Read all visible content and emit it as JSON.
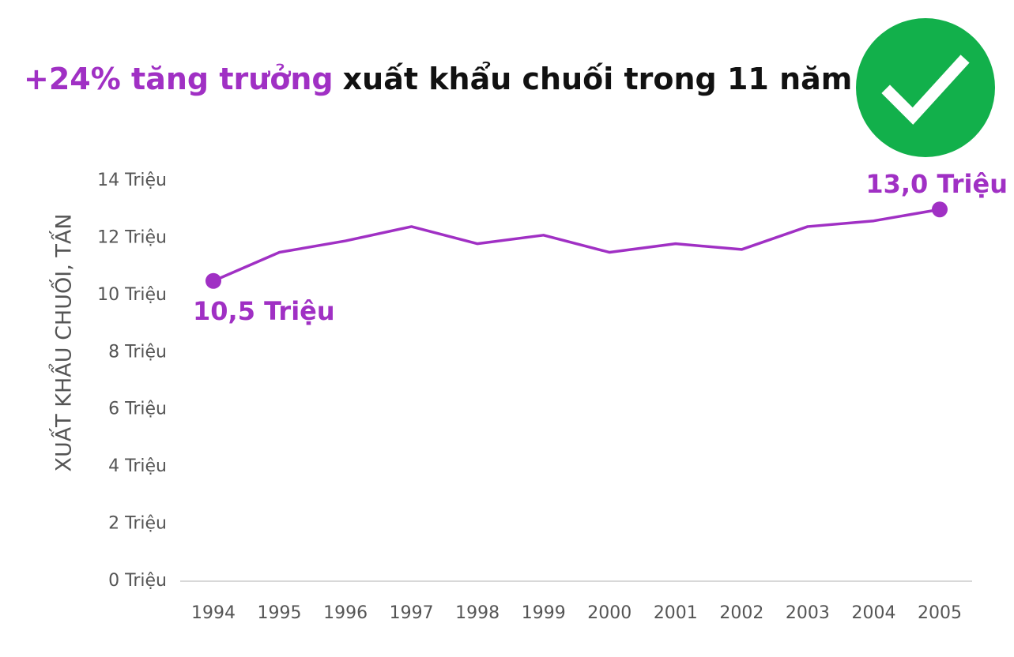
{
  "chart_data": {
    "type": "line",
    "title_highlight": "+24% tăng trưởng",
    "title": "xuất khẩu chuối trong 11 năm",
    "y_label": "XUẤT KHẨU CHUỐI, TẤN",
    "categories": [
      "1994",
      "1995",
      "1996",
      "1997",
      "1998",
      "1999",
      "2000",
      "2001",
      "2002",
      "2003",
      "2004",
      "2005"
    ],
    "values": [
      10.5,
      11.5,
      11.9,
      12.4,
      11.8,
      12.1,
      11.5,
      11.8,
      11.6,
      12.4,
      12.6,
      13.0
    ],
    "value_labels": [
      "10,5 Triệu",
      null,
      null,
      null,
      null,
      null,
      null,
      null,
      null,
      null,
      null,
      "13,0 Triệu"
    ],
    "color": "#a030c4",
    "ylim": [
      0,
      14
    ],
    "yticks": [
      {
        "value": 0,
        "label": "0 Triệu"
      },
      {
        "value": 2,
        "label": "2 Triệu"
      },
      {
        "value": 4,
        "label": "4 Triệu"
      },
      {
        "value": 6,
        "label": "6 Triệu"
      },
      {
        "value": 8,
        "label": "8 Triệu"
      },
      {
        "value": 10,
        "label": "10 Triệu"
      },
      {
        "value": 12,
        "label": "12 Triệu"
      },
      {
        "value": 14,
        "label": "14 Triệu"
      }
    ],
    "grid": false
  }
}
